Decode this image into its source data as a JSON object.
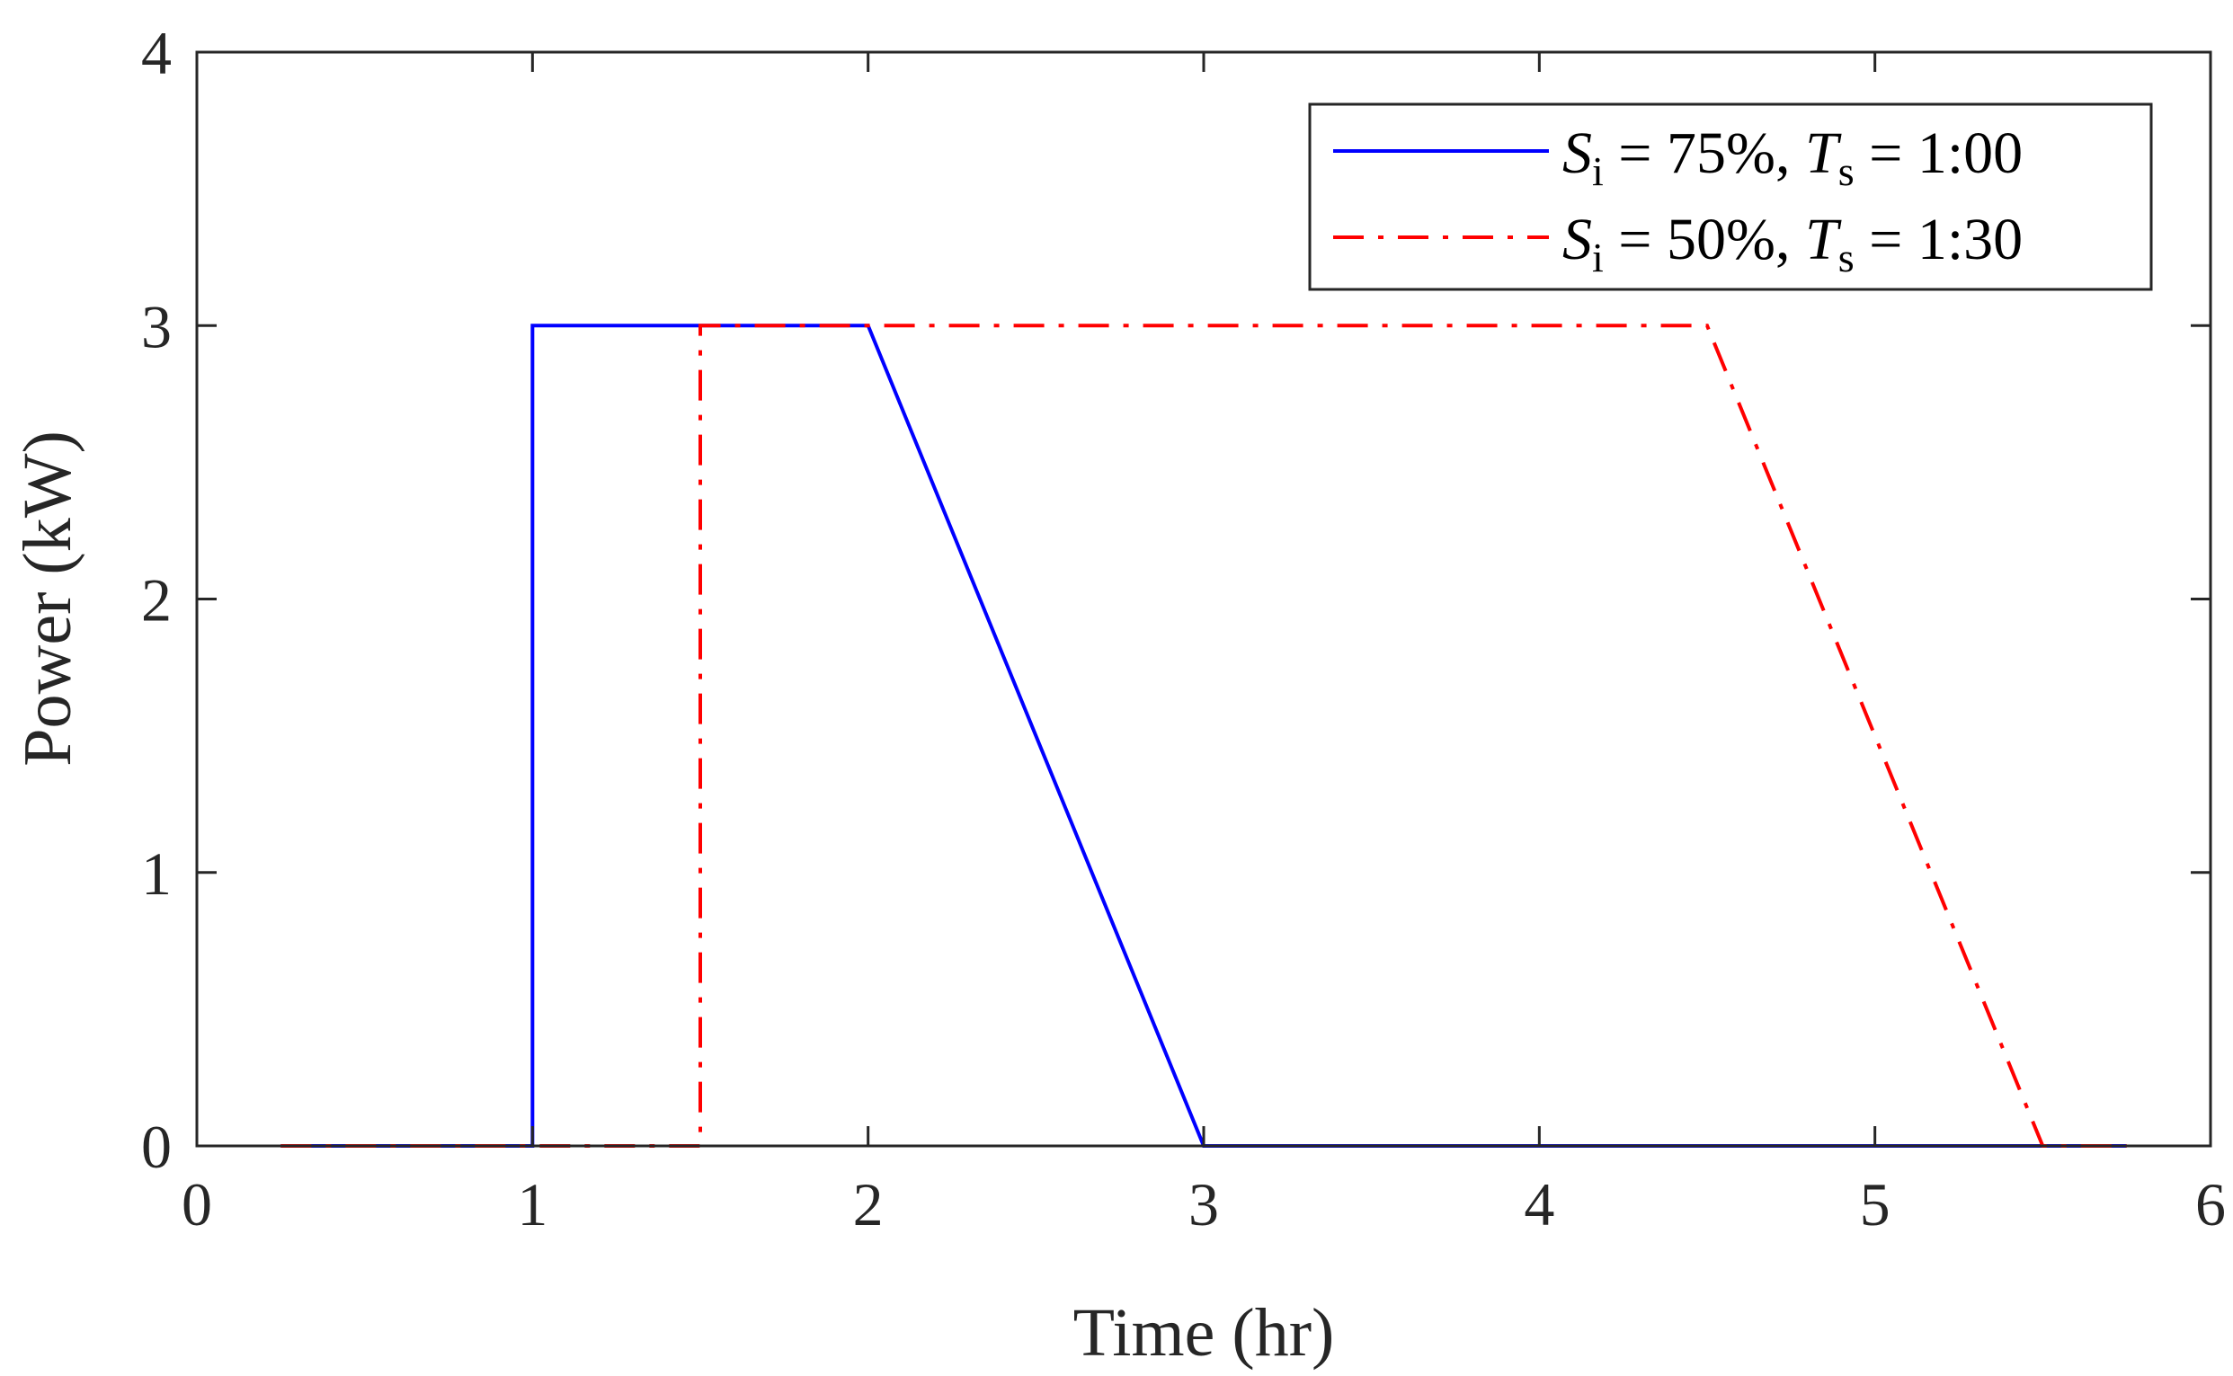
{
  "chart_data": {
    "type": "line",
    "title": "",
    "xlabel": "Time (hr)",
    "ylabel": "Power (kW)",
    "xlim": [
      0,
      6
    ],
    "ylim": [
      0,
      4
    ],
    "xticks": [
      0,
      1,
      2,
      3,
      4,
      5,
      6
    ],
    "yticks": [
      0,
      1,
      2,
      3,
      4
    ],
    "xtick_labels": [
      "0",
      "1",
      "2",
      "3",
      "4",
      "5",
      "6"
    ],
    "ytick_labels": [
      "0",
      "1",
      "2",
      "3",
      "4"
    ],
    "grid": false,
    "legend_position": "top-right",
    "series": [
      {
        "legend": {
          "s_sym": "S",
          "s_sub": "i",
          "s_val": " = 75%, ",
          "t_sym": "T",
          "t_sub": "s",
          "t_val": " = 1:00"
        },
        "color": "#0000ff",
        "line_style": "solid",
        "x": [
          0.25,
          1.0,
          1.0,
          2.0,
          3.0,
          5.75
        ],
        "y": [
          0,
          0,
          3,
          3,
          0,
          0
        ]
      },
      {
        "legend": {
          "s_sym": "S",
          "s_sub": "i",
          "s_val": " = 50%, ",
          "t_sym": "T",
          "t_sub": "s",
          "t_val": " = 1:30"
        },
        "color": "#ff0000",
        "line_style": "dash-dot",
        "x": [
          0.25,
          1.5,
          1.5,
          4.5,
          5.5,
          5.75
        ],
        "y": [
          0,
          0,
          3,
          3,
          0,
          0
        ]
      }
    ]
  }
}
